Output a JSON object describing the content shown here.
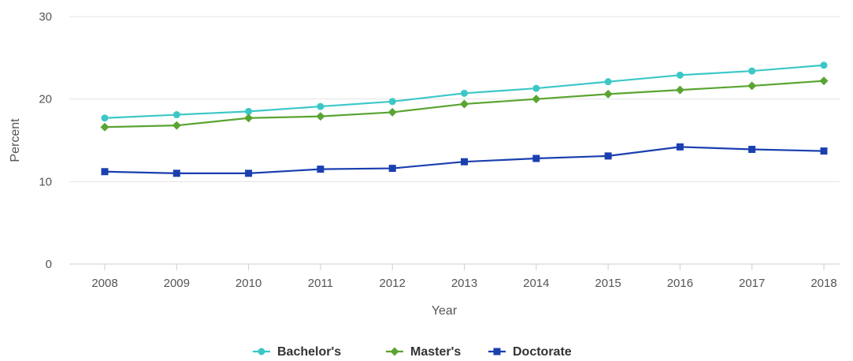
{
  "chart_data": {
    "type": "line",
    "title": "",
    "xlabel": "Year",
    "ylabel": "Percent",
    "ylim": [
      0,
      30
    ],
    "yticks": [
      "0",
      "10",
      "20",
      "30"
    ],
    "x": [
      "2008",
      "2009",
      "2010",
      "2011",
      "2012",
      "2013",
      "2014",
      "2015",
      "2016",
      "2017",
      "2018"
    ],
    "grid": true,
    "legend_position": "bottom",
    "series": [
      {
        "name": "Bachelor's",
        "color": "#3cc7c7",
        "marker": "circle",
        "values": [
          17.7,
          18.1,
          18.5,
          19.1,
          19.7,
          20.7,
          21.3,
          22.1,
          22.9,
          23.4,
          24.1
        ]
      },
      {
        "name": "Master's",
        "color": "#5aa431",
        "marker": "diamond",
        "values": [
          16.6,
          16.8,
          17.7,
          17.9,
          18.4,
          19.4,
          20.0,
          20.6,
          21.1,
          21.6,
          22.2
        ]
      },
      {
        "name": "Doctorate",
        "color": "#1a3fb0",
        "marker": "square",
        "values": [
          11.2,
          11.0,
          11.0,
          11.5,
          11.6,
          12.4,
          12.8,
          13.1,
          14.2,
          13.9,
          13.7
        ]
      }
    ]
  }
}
